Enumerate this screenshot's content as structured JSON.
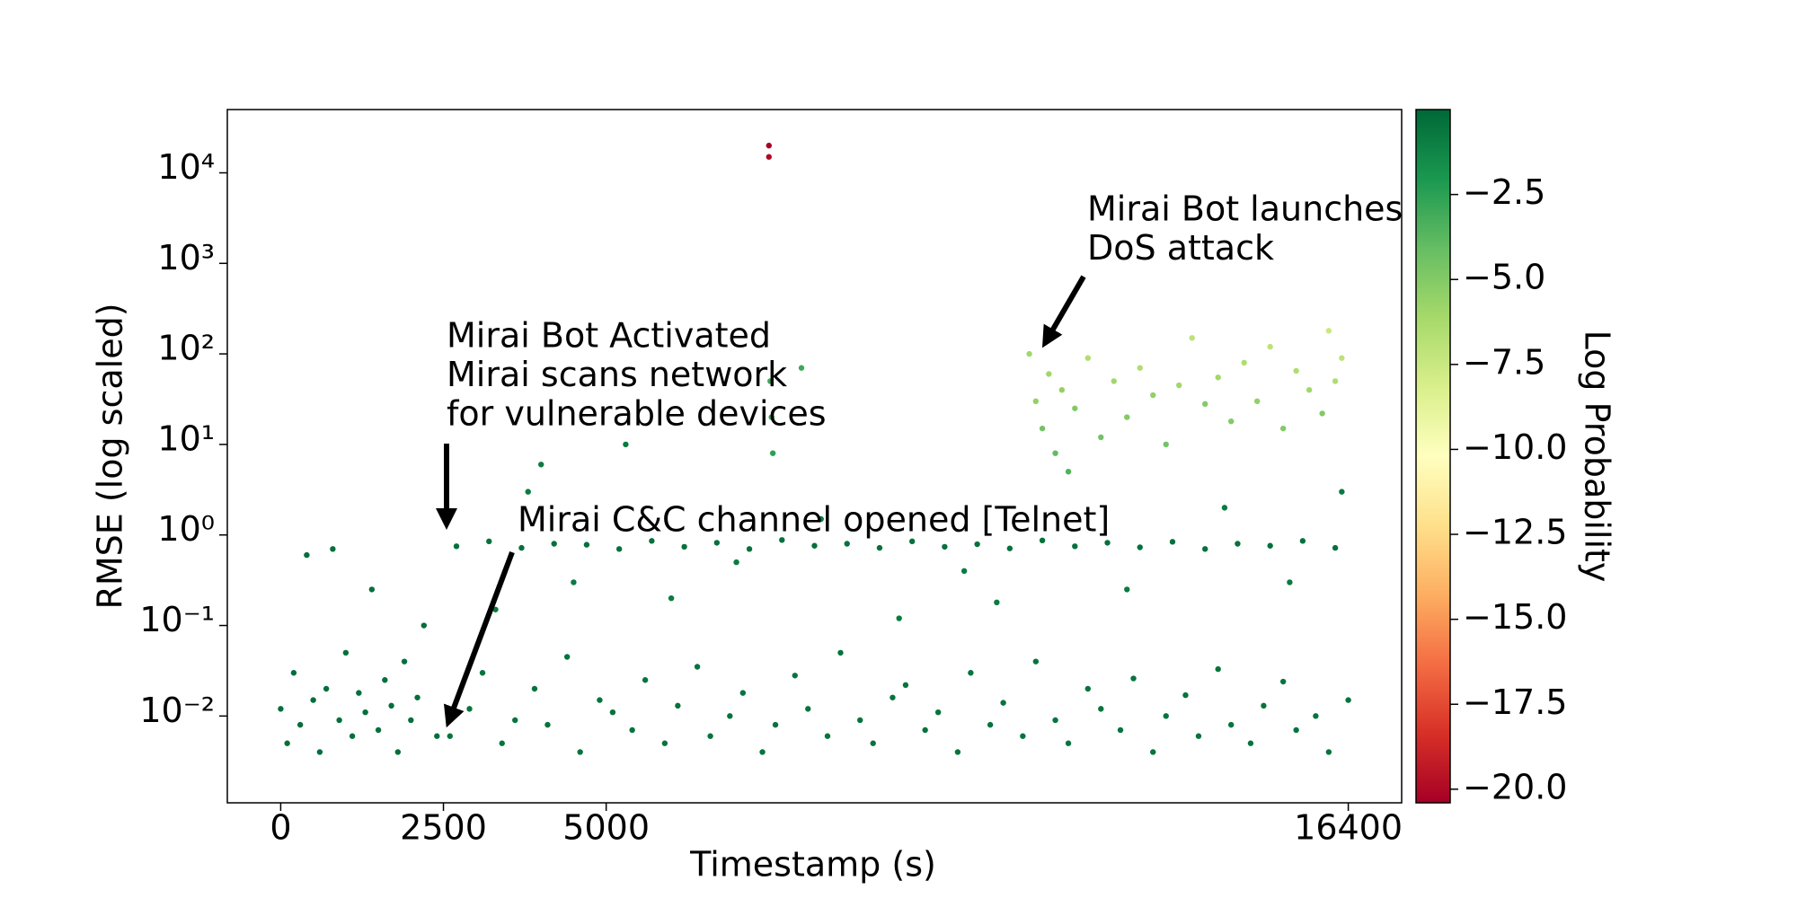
{
  "chart_data": {
    "type": "scatter",
    "xlabel": "Timestamp (s)",
    "ylabel": "RMSE (log scaled)",
    "colorbar_label": "Log Probability",
    "log_scale_y": true,
    "xlim": [
      -820,
      17220
    ],
    "ylim": [
      0.0011,
      50000
    ],
    "xticks": [
      0,
      2500,
      5000,
      16400
    ],
    "yticks": [
      {
        "value": 0.01,
        "label": "10⁻²"
      },
      {
        "value": 0.1,
        "label": "10⁻¹"
      },
      {
        "value": 1,
        "label": "10⁰"
      },
      {
        "value": 10,
        "label": "10¹"
      },
      {
        "value": 100,
        "label": "10²"
      },
      {
        "value": 1000,
        "label": "10³"
      },
      {
        "value": 10000,
        "label": "10⁴"
      }
    ],
    "clim": [
      -20.4,
      0
    ],
    "cticks": [
      {
        "value": -2.5,
        "label": "−2.5"
      },
      {
        "value": -5,
        "label": "−5.0"
      },
      {
        "value": -7.5,
        "label": "−7.5"
      },
      {
        "value": -10,
        "label": "−10.0"
      },
      {
        "value": -12.5,
        "label": "−12.5"
      },
      {
        "value": -15,
        "label": "−15.0"
      },
      {
        "value": -17.5,
        "label": "−17.5"
      },
      {
        "value": -20,
        "label": "−20.0"
      }
    ],
    "colormap": [
      "#a50026",
      "#d73027",
      "#f46d43",
      "#fdae61",
      "#fee08b",
      "#ffffbf",
      "#d9ef8b",
      "#a6d96a",
      "#66bd63",
      "#1a9850",
      "#006837"
    ],
    "annotations": [
      {
        "lines": [
          "Mirai Bot Activated",
          "Mirai scans network",
          "for vulnerable devices"
        ]
      },
      {
        "lines": [
          "Mirai C&C channel opened [Telnet]"
        ]
      },
      {
        "lines": [
          "Mirai Bot launches",
          "DoS attack"
        ]
      }
    ],
    "x": [
      0,
      100,
      200,
      300,
      400,
      500,
      600,
      700,
      800,
      900,
      1000,
      1100,
      1200,
      1300,
      1400,
      1500,
      1600,
      1700,
      1800,
      1900,
      2000,
      2100,
      2200,
      2400,
      2700,
      3200,
      3700,
      4200,
      4700,
      5200,
      5700,
      6200,
      6700,
      7200,
      7700,
      8200,
      8700,
      9200,
      9700,
      10200,
      10700,
      11200,
      11700,
      12200,
      12700,
      13200,
      13700,
      14200,
      14700,
      15200,
      15700,
      16200,
      2600,
      2900,
      3100,
      3400,
      3600,
      3900,
      4100,
      4400,
      4600,
      4900,
      5100,
      5400,
      5600,
      5900,
      6100,
      6400,
      6600,
      6900,
      7100,
      7400,
      7600,
      7900,
      8100,
      8400,
      8600,
      8900,
      9100,
      9400,
      9600,
      9900,
      10100,
      10400,
      10600,
      10900,
      11100,
      11400,
      11600,
      11900,
      12100,
      12400,
      12600,
      12900,
      13100,
      13400,
      13600,
      13900,
      14100,
      14400,
      14600,
      14900,
      15100,
      15400,
      15600,
      15900,
      16100,
      16400,
      3300,
      3800,
      4500,
      5300,
      6000,
      7000,
      8300,
      9500,
      10500,
      11000,
      13000,
      14500,
      15500,
      4000,
      16300,
      11500,
      11600,
      11700,
      11800,
      11900,
      12000,
      12200,
      12400,
      12600,
      12800,
      13000,
      13200,
      13400,
      13600,
      13800,
      14000,
      14200,
      14400,
      14600,
      14800,
      15000,
      15200,
      15400,
      15600,
      15800,
      16000,
      16100,
      16200,
      16300,
      12100,
      7500,
      7500,
      7520,
      7540,
      7560,
      8000
    ],
    "values": [
      0.012,
      0.005,
      0.03,
      0.008,
      0.6,
      0.015,
      0.004,
      0.02,
      0.7,
      0.009,
      0.05,
      0.006,
      0.018,
      0.011,
      0.25,
      0.007,
      0.025,
      0.013,
      0.004,
      0.04,
      0.009,
      0.016,
      0.1,
      0.006,
      0.75,
      0.85,
      0.72,
      0.8,
      0.78,
      0.7,
      0.86,
      0.74,
      0.82,
      0.7,
      0.88,
      0.76,
      0.8,
      0.72,
      0.85,
      0.74,
      0.79,
      0.71,
      0.87,
      0.75,
      0.82,
      0.73,
      0.84,
      0.7,
      0.8,
      0.76,
      0.86,
      0.72,
      0.006,
      0.012,
      0.03,
      0.005,
      0.009,
      0.02,
      0.008,
      0.045,
      0.004,
      0.015,
      0.011,
      0.007,
      0.025,
      0.005,
      0.013,
      0.035,
      0.006,
      0.01,
      0.018,
      0.004,
      0.008,
      0.028,
      0.012,
      0.006,
      0.05,
      0.009,
      0.005,
      0.016,
      0.022,
      0.007,
      0.011,
      0.004,
      0.03,
      0.008,
      0.014,
      0.006,
      0.04,
      0.009,
      0.005,
      0.02,
      0.012,
      0.007,
      0.026,
      0.004,
      0.01,
      0.017,
      0.006,
      0.033,
      0.008,
      0.005,
      0.013,
      0.024,
      0.007,
      0.01,
      0.004,
      0.015,
      0.15,
      3,
      0.3,
      10,
      0.2,
      0.5,
      1.5,
      0.12,
      0.4,
      0.18,
      0.25,
      2,
      0.3,
      6,
      3,
      100,
      30,
      15,
      60,
      8,
      40,
      25,
      90,
      12,
      50,
      20,
      70,
      35,
      10,
      45,
      150,
      28,
      55,
      18,
      80,
      30,
      120,
      15,
      65,
      40,
      22,
      180,
      50,
      90,
      5,
      20000,
      15000,
      50,
      20,
      8,
      70
    ],
    "color_values": [
      -0.3,
      -0.3,
      -0.3,
      -0.3,
      -0.3,
      -0.3,
      -0.3,
      -0.3,
      -0.3,
      -0.3,
      -0.3,
      -0.3,
      -0.3,
      -0.3,
      -0.3,
      -0.3,
      -0.3,
      -0.3,
      -0.3,
      -0.3,
      -0.3,
      -0.3,
      -0.3,
      -0.3,
      -0.4,
      -0.4,
      -0.4,
      -0.4,
      -0.4,
      -0.4,
      -0.4,
      -0.4,
      -0.4,
      -0.4,
      -0.4,
      -0.4,
      -0.4,
      -0.4,
      -0.4,
      -0.4,
      -0.4,
      -0.4,
      -0.4,
      -0.4,
      -0.4,
      -0.4,
      -0.4,
      -0.4,
      -0.4,
      -0.4,
      -0.4,
      -0.4,
      -0.5,
      -0.5,
      -0.5,
      -0.5,
      -0.5,
      -0.5,
      -0.5,
      -0.5,
      -0.5,
      -0.5,
      -0.5,
      -0.5,
      -0.5,
      -0.5,
      -0.5,
      -0.5,
      -0.5,
      -0.5,
      -0.5,
      -0.5,
      -0.5,
      -0.5,
      -0.5,
      -0.5,
      -0.5,
      -0.5,
      -0.5,
      -0.5,
      -0.5,
      -0.5,
      -0.5,
      -0.5,
      -0.5,
      -0.5,
      -0.5,
      -0.5,
      -0.5,
      -0.5,
      -0.5,
      -0.5,
      -0.5,
      -0.5,
      -0.5,
      -0.5,
      -0.5,
      -0.5,
      -0.5,
      -0.5,
      -0.5,
      -0.5,
      -0.5,
      -0.5,
      -0.5,
      -0.5,
      -0.5,
      -0.5,
      -0.8,
      -0.8,
      -0.8,
      -0.8,
      -0.8,
      -0.8,
      -0.8,
      -0.8,
      -0.8,
      -0.8,
      -0.8,
      -0.8,
      -0.8,
      -0.8,
      -0.8,
      -6,
      -5.5,
      -4.5,
      -6,
      -4,
      -5.5,
      -5,
      -6.5,
      -4.5,
      -6,
      -5,
      -6.5,
      -5.5,
      -4.5,
      -6,
      -7,
      -5,
      -6,
      -5,
      -6.5,
      -5.5,
      -7,
      -5,
      -6.5,
      -6,
      -5,
      -7.5,
      -6.5,
      -7,
      -3.5,
      -20.3,
      -20,
      -3,
      -2.8,
      -2.5,
      -3
    ]
  }
}
